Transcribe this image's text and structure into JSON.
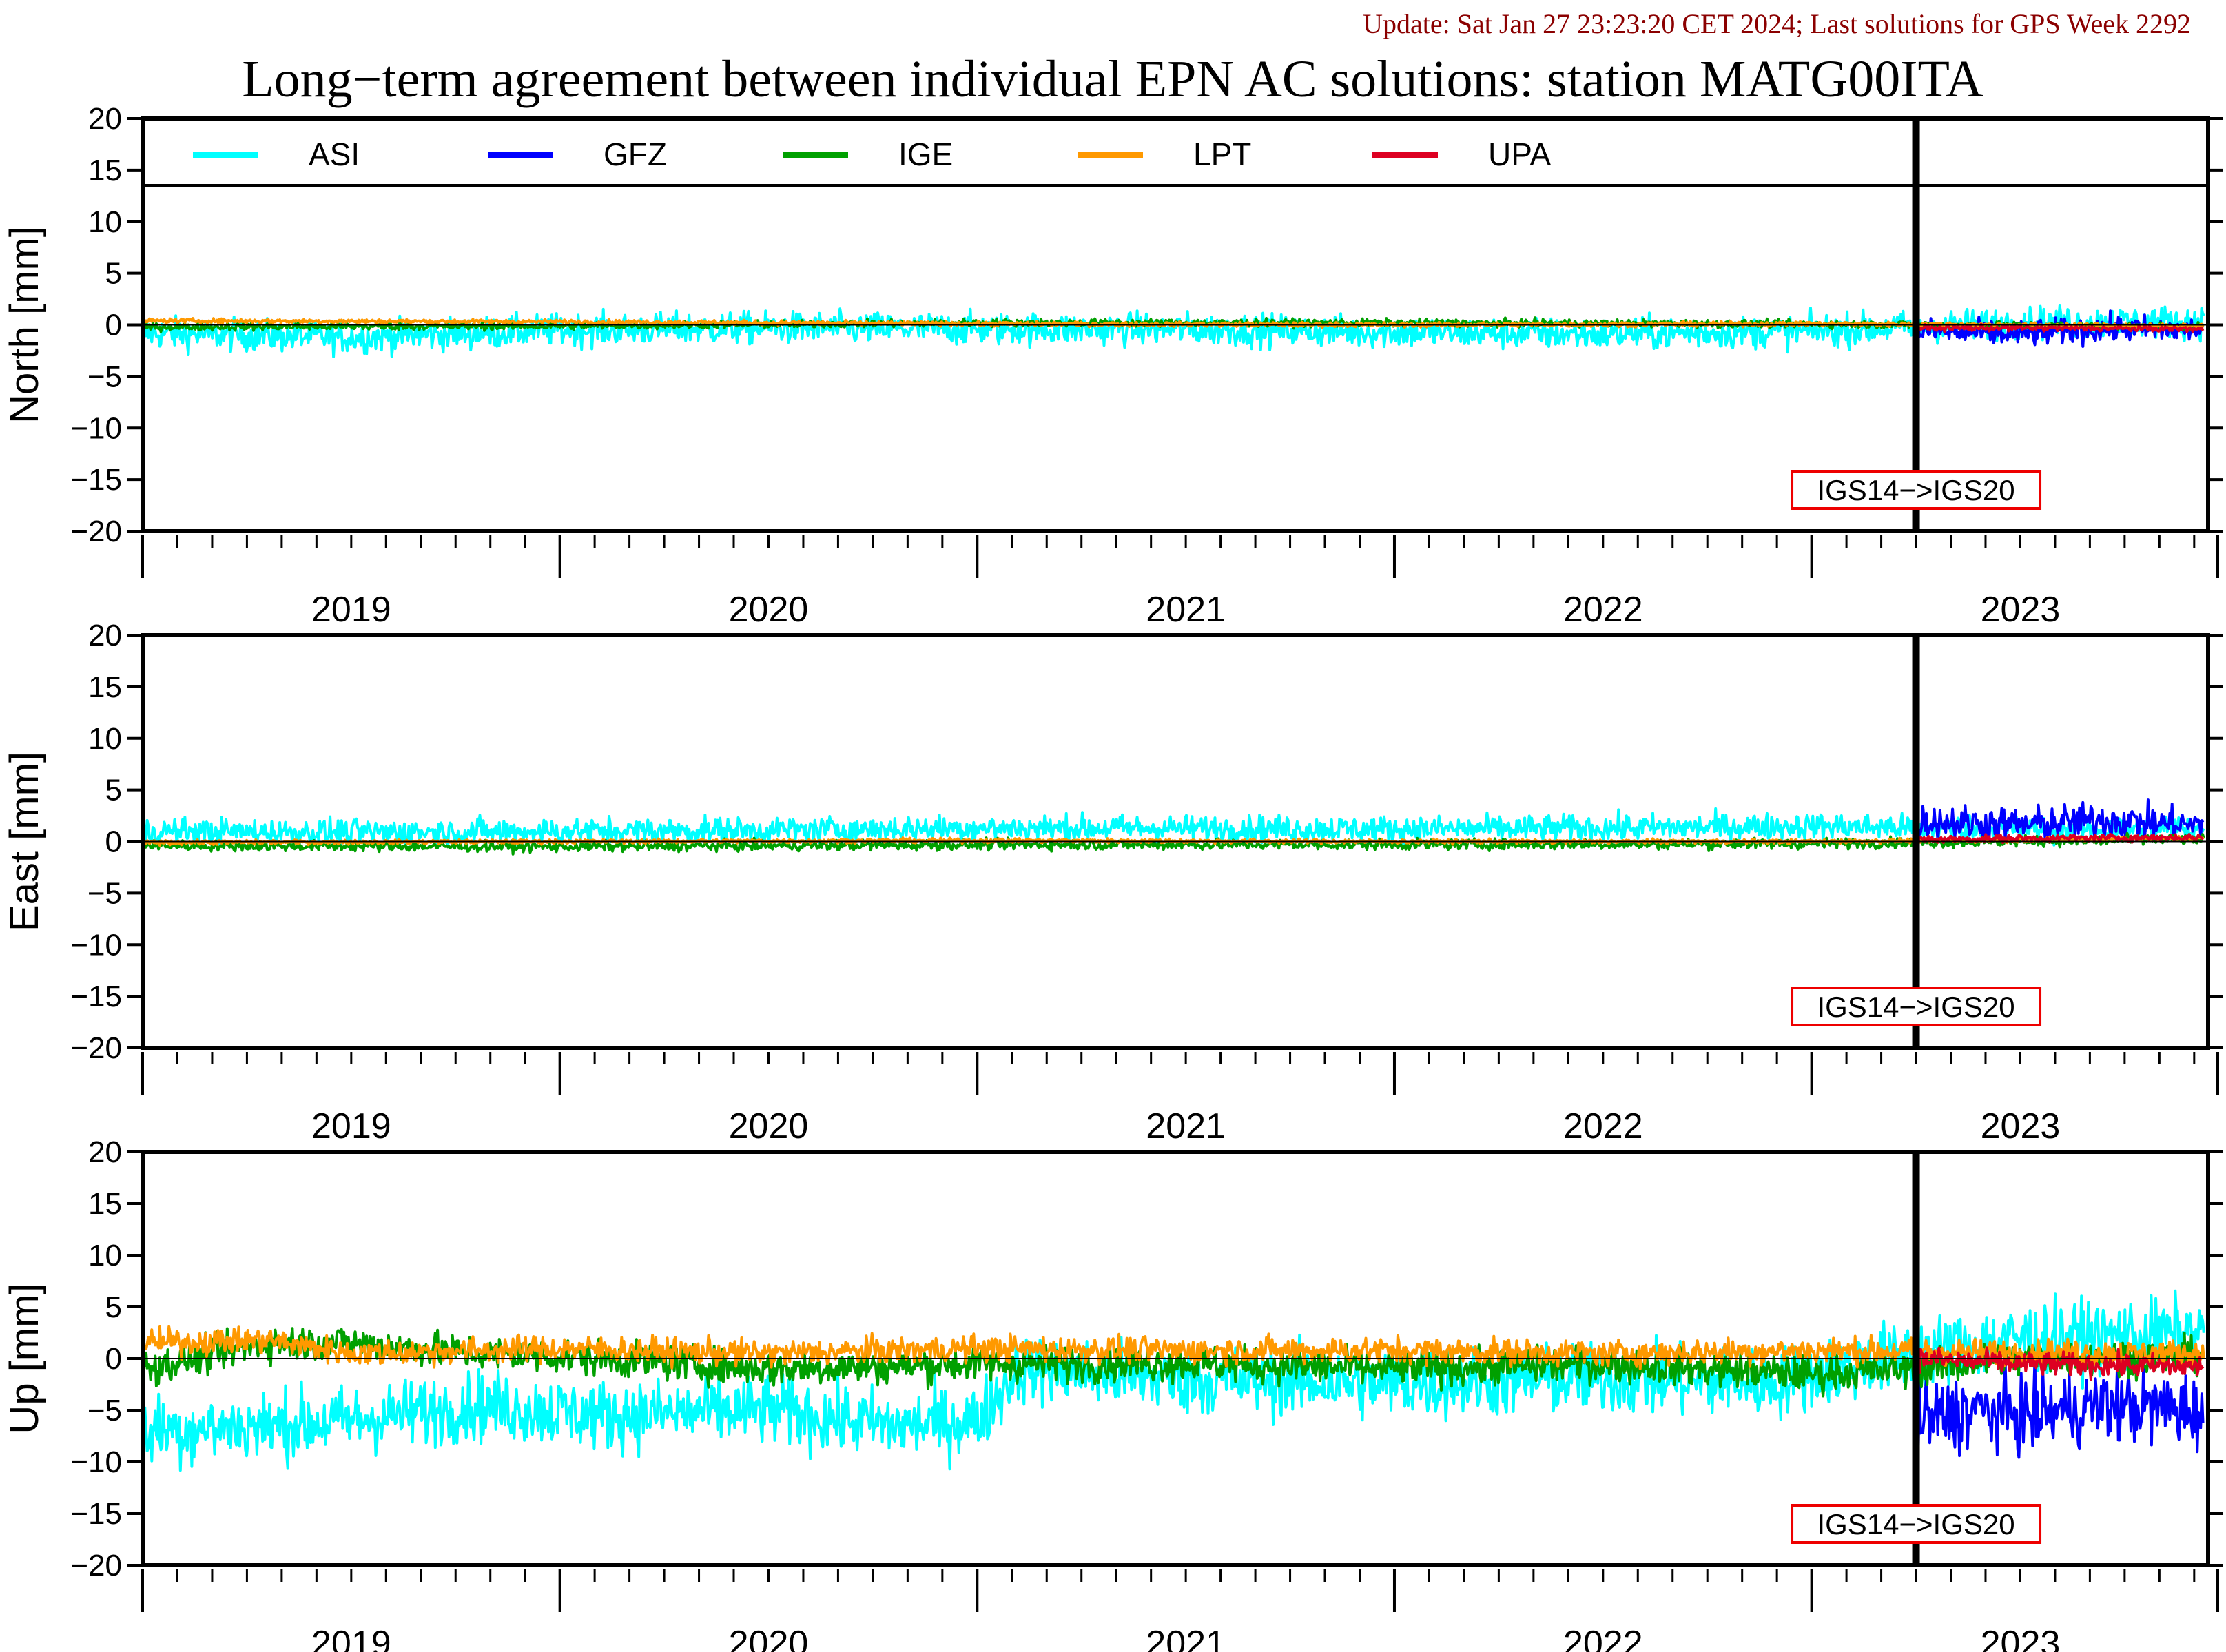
{
  "update_text": "Update: Sat Jan 27 23:23:20 CET 2024; Last solutions for GPS Week 2292",
  "title": "Long−term agreement between individual EPN AC solutions: station MATG00ITA",
  "colors": {
    "ASI": "#00ffff",
    "GFZ": "#0000ff",
    "IGE": "#00a000",
    "LPT": "#ff9900",
    "UPA": "#dd0022",
    "update_text": "#8b0000",
    "annotation_box": "#ee0000"
  },
  "chart_data": [
    {
      "type": "line",
      "panel": "north",
      "ylabel": "North [mm]",
      "ylim": [
        -20,
        20
      ],
      "yticks": [
        20,
        15,
        10,
        5,
        0,
        -5,
        -10,
        -15,
        -20
      ],
      "ytick_labels": [
        "20",
        "15",
        "10",
        "5",
        "0",
        "−5",
        "−10",
        "−15",
        "−20"
      ],
      "xlim": [
        2018.5,
        2023.45
      ],
      "xtick_labels": [
        "2019",
        "2020",
        "2021",
        "2022",
        "2023"
      ],
      "grid": false,
      "zero_line": true,
      "legend": "top",
      "frame_change": {
        "x": 2022.75,
        "label": "IGS14−>IGS20"
      },
      "series": [
        {
          "name": "ASI",
          "x": [
            2018.5,
            2019.0,
            2019.5,
            2020.0,
            2020.5,
            2021.0,
            2021.5,
            2022.0,
            2022.5,
            2023.0,
            2023.44
          ],
          "values": [
            -0.8,
            -1.2,
            -0.5,
            -0.3,
            -0.4,
            -0.4,
            -0.7,
            -0.9,
            -0.6,
            0.2,
            0.3
          ]
        },
        {
          "name": "GFZ",
          "x": [
            2022.75,
            2023.0,
            2023.2,
            2023.44
          ],
          "values": [
            -0.6,
            -0.9,
            -0.4,
            -0.5
          ]
        },
        {
          "name": "IGE",
          "x": [
            2018.5,
            2019.5,
            2020.5,
            2021.5,
            2022.5,
            2023.44
          ],
          "values": [
            -0.2,
            -0.1,
            0.2,
            0.2,
            0.1,
            -0.2
          ]
        },
        {
          "name": "LPT",
          "x": [
            2018.5,
            2019.5,
            2020.5,
            2021.5,
            2022.5,
            2023.44
          ],
          "values": [
            0.4,
            0.3,
            0.1,
            0.0,
            0.1,
            -0.1
          ]
        },
        {
          "name": "UPA",
          "x": [
            2022.75,
            2023.0,
            2023.44
          ],
          "values": [
            -0.3,
            -0.3,
            -0.4
          ]
        }
      ]
    },
    {
      "type": "line",
      "panel": "east",
      "ylabel": "East [mm]",
      "ylim": [
        -20,
        20
      ],
      "yticks": [
        20,
        15,
        10,
        5,
        0,
        -5,
        -10,
        -15,
        -20
      ],
      "ytick_labels": [
        "20",
        "15",
        "10",
        "5",
        "0",
        "−5",
        "−10",
        "−15",
        "−20"
      ],
      "xlim": [
        2018.5,
        2023.45
      ],
      "xtick_labels": [
        "2019",
        "2020",
        "2021",
        "2022",
        "2023"
      ],
      "grid": false,
      "zero_line": true,
      "frame_change": {
        "x": 2022.75,
        "label": "IGS14−>IGS20"
      },
      "series": [
        {
          "name": "ASI",
          "x": [
            2018.5,
            2019.0,
            2019.5,
            2020.0,
            2020.5,
            2021.0,
            2021.5,
            2022.0,
            2022.5,
            2023.0,
            2023.44
          ],
          "values": [
            1.0,
            0.9,
            1.0,
            1.1,
            1.3,
            1.3,
            1.2,
            1.3,
            1.5,
            1.2,
            1.3
          ]
        },
        {
          "name": "GFZ",
          "x": [
            2022.75,
            2023.0,
            2023.2,
            2023.44
          ],
          "values": [
            2.0,
            1.6,
            2.1,
            1.5
          ]
        },
        {
          "name": "IGE",
          "x": [
            2018.5,
            2019.5,
            2020.5,
            2021.5,
            2022.5,
            2023.44
          ],
          "values": [
            -0.4,
            -0.5,
            -0.3,
            -0.3,
            -0.2,
            0.2
          ]
        },
        {
          "name": "LPT",
          "x": [
            2018.5,
            2019.5,
            2020.5,
            2021.5,
            2022.5,
            2023.44
          ],
          "values": [
            -0.1,
            0.0,
            0.1,
            0.0,
            0.0,
            0.3
          ]
        },
        {
          "name": "UPA",
          "x": [
            2022.75,
            2023.0,
            2023.44
          ],
          "values": [
            0.2,
            0.3,
            0.4
          ]
        }
      ]
    },
    {
      "type": "line",
      "panel": "up",
      "ylabel": "Up [mm]",
      "ylim": [
        -20,
        20
      ],
      "yticks": [
        20,
        15,
        10,
        5,
        0,
        -5,
        -10,
        -15,
        -20
      ],
      "ytick_labels": [
        "20",
        "15",
        "10",
        "5",
        "0",
        "−5",
        "−10",
        "−15",
        "−20"
      ],
      "xlim": [
        2018.5,
        2023.45
      ],
      "xtick_labels": [
        "2019",
        "2020",
        "2021",
        "2022",
        "2023"
      ],
      "grid": false,
      "zero_line": true,
      "frame_change": {
        "x": 2022.75,
        "label": "IGS14−>IGS20"
      },
      "series": [
        {
          "name": "ASI",
          "x": [
            2018.5,
            2018.8,
            2019.0,
            2019.3,
            2019.6,
            2020.0,
            2020.3,
            2020.5,
            2020.6,
            2021.0,
            2021.5,
            2022.0,
            2022.4,
            2022.74,
            2023.0,
            2023.44
          ],
          "values": [
            -7.0,
            -6.5,
            -6.0,
            -4.5,
            -5.5,
            -5.0,
            -6.5,
            -6.0,
            -1.0,
            -2.0,
            -2.5,
            -2.0,
            -2.5,
            0.5,
            2.0,
            2.5
          ]
        },
        {
          "name": "GFZ",
          "x": [
            2022.75,
            2022.9,
            2023.0,
            2023.2,
            2023.44
          ],
          "values": [
            -6.0,
            -5.0,
            -5.5,
            -4.5,
            -5.0
          ]
        },
        {
          "name": "IGE",
          "x": [
            2018.5,
            2018.8,
            2019.0,
            2019.3,
            2019.6,
            2020.0,
            2020.5,
            2021.0,
            2021.5,
            2022.0,
            2022.5,
            2022.74,
            2023.0,
            2023.44
          ],
          "values": [
            -1.0,
            1.5,
            1.5,
            0.5,
            0.0,
            -1.0,
            -0.5,
            -0.5,
            -1.0,
            -0.5,
            -1.5,
            -1.0,
            0.0,
            0.2
          ]
        },
        {
          "name": "LPT",
          "x": [
            2018.5,
            2018.8,
            2019.0,
            2019.5,
            2020.0,
            2020.5,
            2021.0,
            2021.5,
            2022.0,
            2022.5,
            2023.0,
            2023.44
          ],
          "values": [
            1.5,
            1.8,
            0.5,
            1.0,
            0.5,
            1.0,
            0.8,
            0.8,
            0.5,
            0.8,
            0.6,
            0.5
          ]
        },
        {
          "name": "UPA",
          "x": [
            2022.75,
            2023.0,
            2023.44
          ],
          "values": [
            0.0,
            -0.5,
            -0.8
          ]
        }
      ]
    }
  ]
}
